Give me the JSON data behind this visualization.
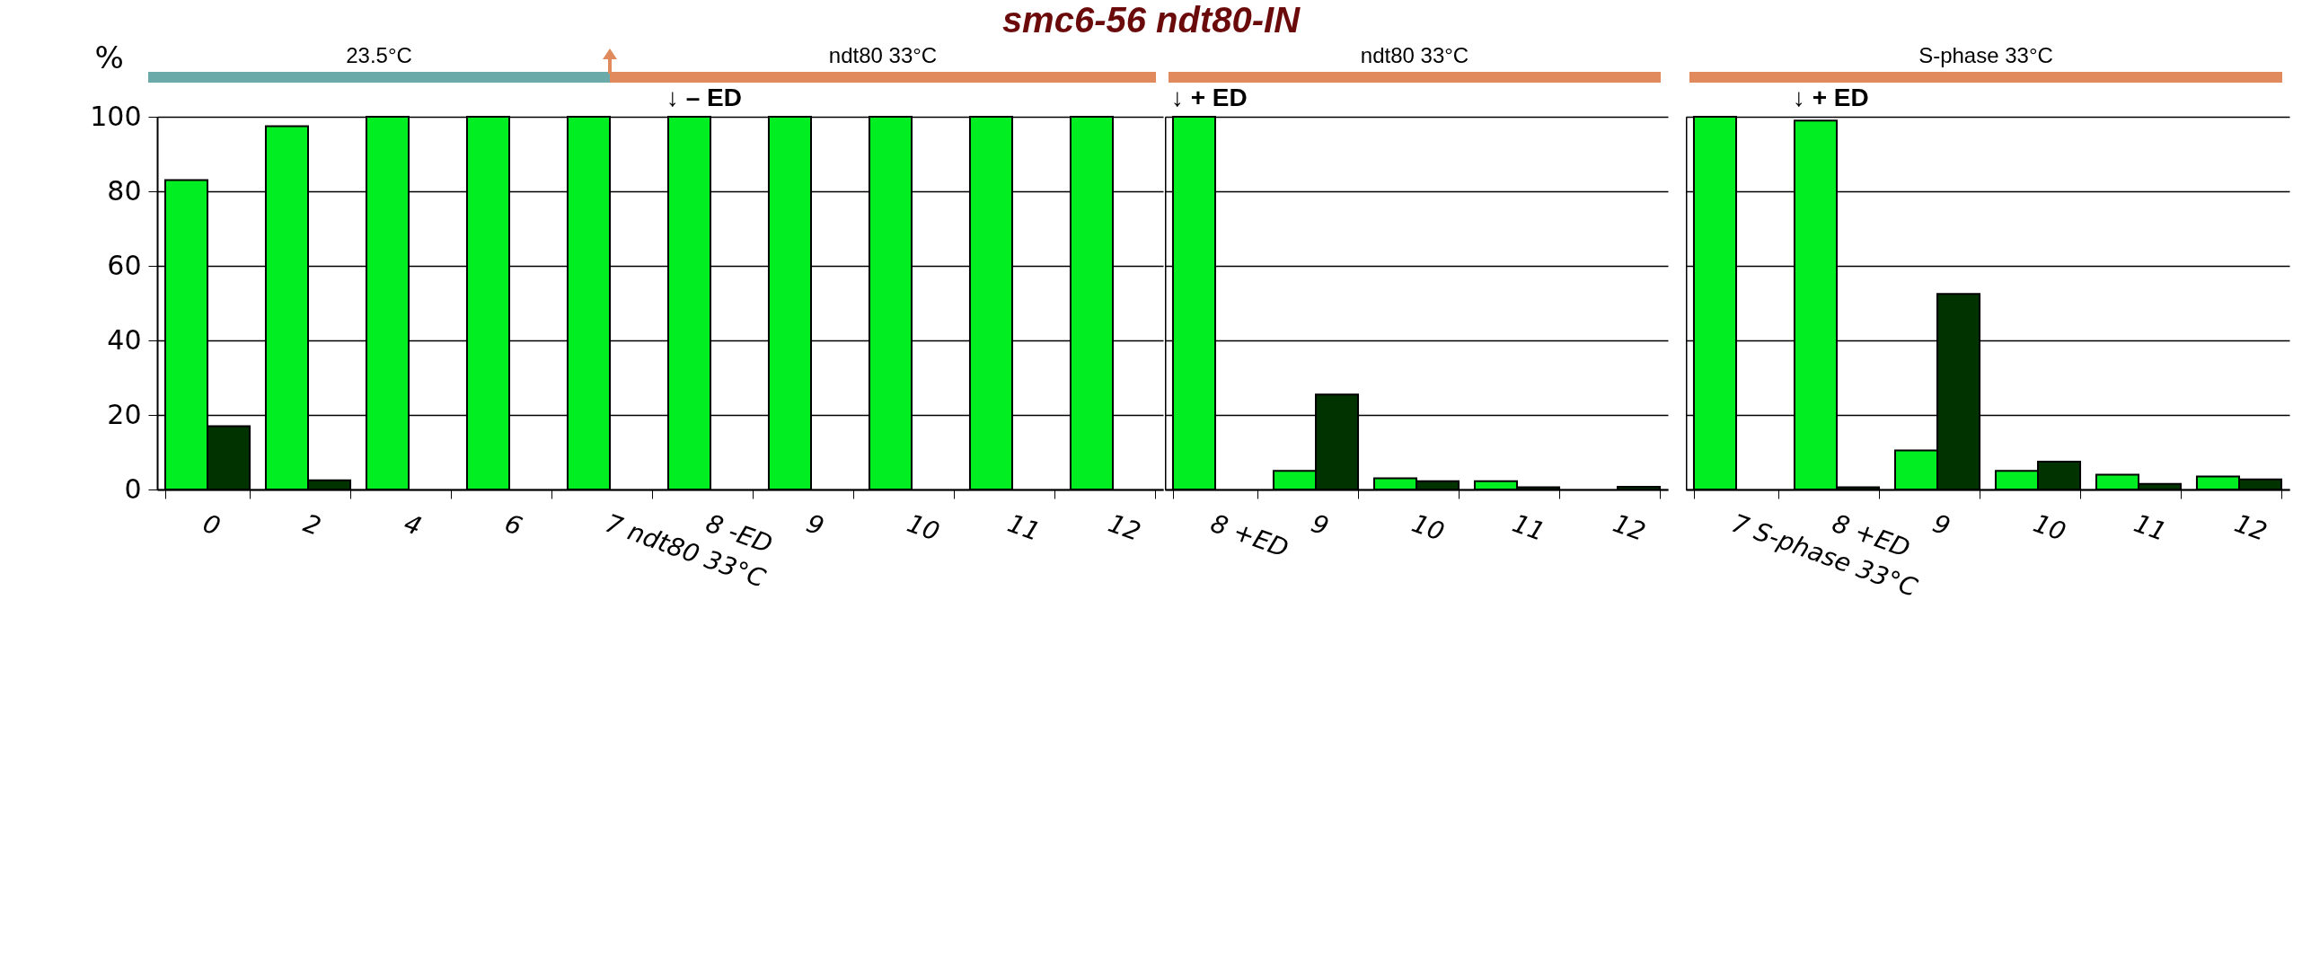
{
  "chart_data": [
    {
      "type": "bar",
      "title": "smc6-56 ndt80-IN",
      "ylabel": "%",
      "categories": [
        "0",
        "2",
        "4",
        "6",
        "7 ndt80 33°C",
        "8  -ED",
        "9",
        "10",
        "11",
        "12"
      ],
      "series": [
        {
          "color": "#00ee22",
          "values": [
            83,
            97.5,
            100,
            100,
            100,
            100,
            100,
            100,
            100,
            100
          ]
        },
        {
          "color": "#003300",
          "values": [
            17,
            2.5,
            null,
            null,
            null,
            null,
            null,
            null,
            null,
            null
          ]
        }
      ],
      "ylim": [
        0,
        100
      ],
      "yticks": [
        0,
        20,
        40,
        60,
        80,
        100
      ],
      "grid": "y",
      "annotations": [
        "23.5°C",
        "ndt80 33°C",
        {
          "text": "↓ – ED",
          "x": "8  -ED",
          "y": 100
        }
      ]
    },
    {
      "type": "bar",
      "categories": [
        "8 +ED",
        "9",
        "10",
        "11",
        "12"
      ],
      "series": [
        {
          "color": "#00ee22",
          "values": [
            100,
            5,
            3,
            2.2,
            null
          ]
        },
        {
          "color": "#003300",
          "values": [
            null,
            25.5,
            2.2,
            0.6,
            0.7
          ]
        }
      ],
      "ylim": [
        0,
        100
      ],
      "yticks": [
        0,
        20,
        40,
        60,
        80,
        100
      ],
      "grid": "y",
      "tick_labels": "x",
      "annotations": [
        "ndt80 33°C",
        {
          "text": "↓ + ED",
          "x": "8 +ED",
          "y": 100
        }
      ]
    },
    {
      "type": "bar",
      "categories": [
        "7 S-phase 33°C",
        "8 +ED",
        "9",
        "10",
        "11",
        "12"
      ],
      "series": [
        {
          "color": "#00ee22",
          "values": [
            100,
            99,
            10.5,
            5,
            4,
            3.5
          ]
        },
        {
          "color": "#003300",
          "values": [
            null,
            0.6,
            52.5,
            7.5,
            1.5,
            2.7
          ]
        }
      ],
      "ylim": [
        0,
        100
      ],
      "yticks": [
        0,
        20,
        40,
        60,
        80,
        100
      ],
      "grid": "y",
      "tick_labels": "x",
      "annotations": [
        "S-phase 33°C",
        {
          "text": "↓ + ED",
          "x": "8 +ED",
          "y": 100
        }
      ]
    }
  ]
}
